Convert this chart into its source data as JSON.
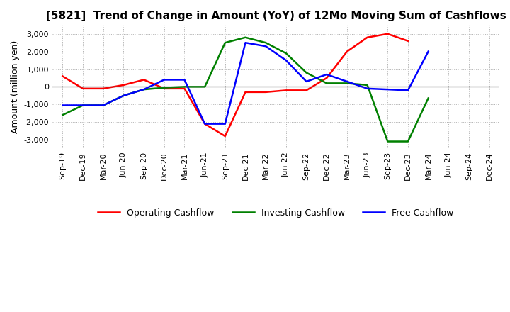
{
  "title": "[5821]  Trend of Change in Amount (YoY) of 12Mo Moving Sum of Cashflows",
  "ylabel": "Amount (million yen)",
  "ylim": [
    -3500,
    3500
  ],
  "yticks": [
    -3000,
    -2000,
    -1000,
    0,
    1000,
    2000,
    3000
  ],
  "x_labels": [
    "Sep-19",
    "Dec-19",
    "Mar-20",
    "Jun-20",
    "Sep-20",
    "Dec-20",
    "Mar-21",
    "Jun-21",
    "Sep-21",
    "Dec-21",
    "Mar-22",
    "Jun-22",
    "Sep-22",
    "Dec-22",
    "Mar-23",
    "Jun-23",
    "Sep-23",
    "Dec-23",
    "Mar-24",
    "Jun-24",
    "Sep-24",
    "Dec-24"
  ],
  "operating": [
    600,
    -100,
    -100,
    100,
    400,
    -100,
    -100,
    -2100,
    -2800,
    -300,
    -300,
    -200,
    -200,
    500,
    2000,
    2800,
    3000,
    2600,
    null,
    null,
    null,
    null
  ],
  "investing": [
    -1600,
    -1050,
    -1050,
    -500,
    -150,
    -50,
    0,
    0,
    2500,
    2800,
    2500,
    1900,
    800,
    200,
    200,
    100,
    -3100,
    -3100,
    -650,
    null,
    null,
    null
  ],
  "free": [
    -1050,
    -1050,
    -1050,
    -500,
    -150,
    400,
    400,
    -2100,
    -2100,
    2500,
    2300,
    1500,
    300,
    700,
    300,
    -100,
    -150,
    -200,
    2000,
    null,
    null,
    null
  ],
  "operating_color": "#ff0000",
  "investing_color": "#008000",
  "free_color": "#0000ff",
  "background_color": "#ffffff",
  "grid_color": "#b0b0b0",
  "grid_linestyle": "dotted",
  "title_fontsize": 11,
  "label_fontsize": 9,
  "tick_fontsize": 8,
  "legend_fontsize": 9
}
